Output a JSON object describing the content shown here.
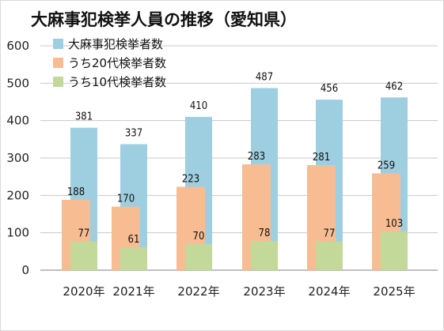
{
  "chart_data": {
    "type": "bar",
    "title": "大麻事犯検挙人員の推移（愛知県）",
    "categories": [
      "2020年",
      "2021年",
      "2022年",
      "2023年",
      "2024年",
      "2025年"
    ],
    "series": [
      {
        "name": "大麻事犯検挙者数",
        "values": [
          381,
          337,
          410,
          487,
          456,
          462
        ],
        "color": "#9ecfe0"
      },
      {
        "name": "うち20代検挙者数",
        "values": [
          188,
          170,
          223,
          283,
          281,
          259
        ],
        "color": "#f8bc92"
      },
      {
        "name": "うち10代検挙者数",
        "values": [
          77,
          61,
          70,
          78,
          77,
          103
        ],
        "color": "#c2d99a"
      }
    ],
    "ylim": [
      0,
      600
    ],
    "yticks": [
      0,
      100,
      200,
      300,
      400,
      500,
      600
    ],
    "grid": true,
    "legend": "top-left",
    "xlabel": "",
    "ylabel": ""
  }
}
